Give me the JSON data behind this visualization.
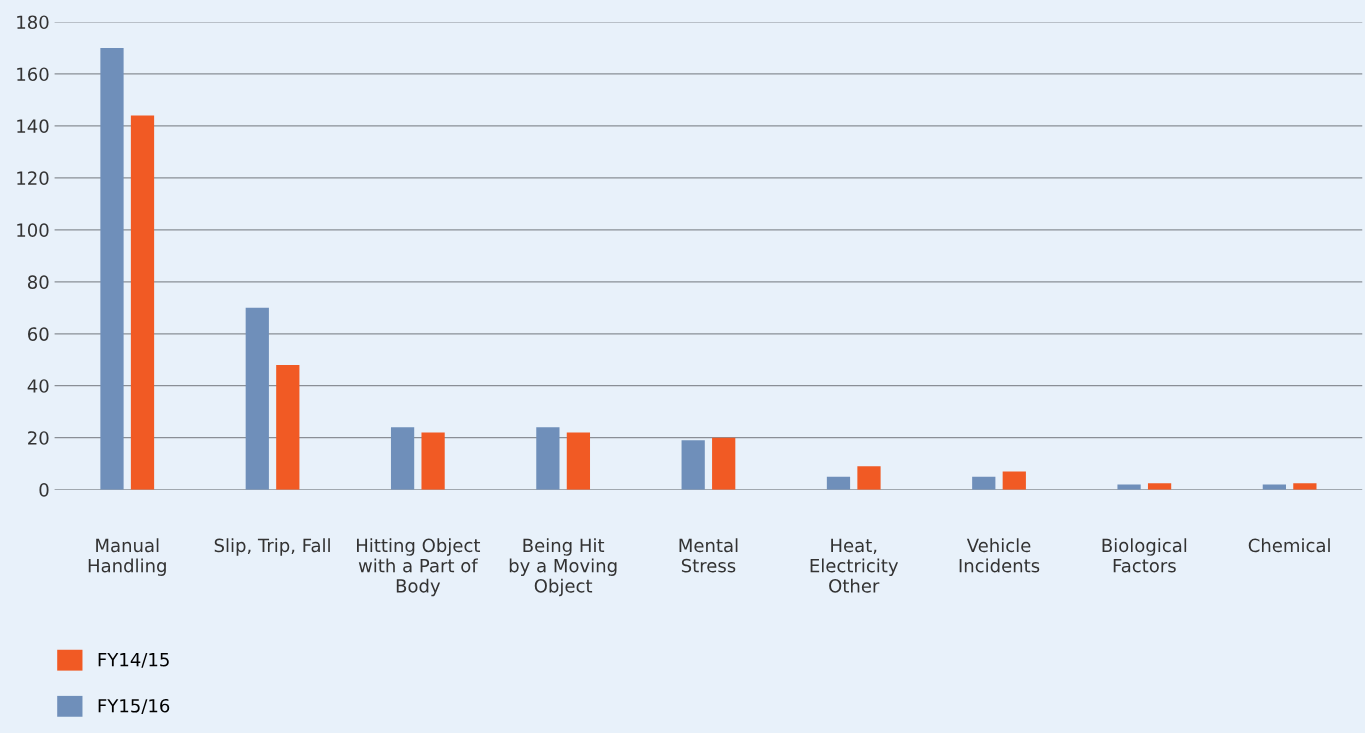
{
  "chart_data": {
    "type": "bar",
    "categories": [
      "Manual\nHandling",
      "Slip, Trip, Fall",
      "Hitting Object\nwith a Part of\nBody",
      "Being Hit\nby a Moving\nObject",
      "Mental\nStress",
      "Heat,\nElectricity\nOther",
      "Vehicle\nIncidents",
      "Biological\nFactors",
      "Chemical"
    ],
    "series": [
      {
        "name": "FY15/16",
        "color": "#6f8fba",
        "values": [
          170,
          70,
          24,
          24,
          19,
          5,
          5,
          2,
          2
        ]
      },
      {
        "name": "FY14/15",
        "color": "#f15a24",
        "values": [
          144,
          48,
          22,
          22,
          20,
          9,
          7,
          2.5,
          2.5
        ]
      }
    ],
    "ylim": [
      0,
      180
    ],
    "yticks": [
      0,
      20,
      40,
      60,
      80,
      100,
      120,
      140,
      160,
      180
    ],
    "grid": "y",
    "legend": "bottom left"
  }
}
